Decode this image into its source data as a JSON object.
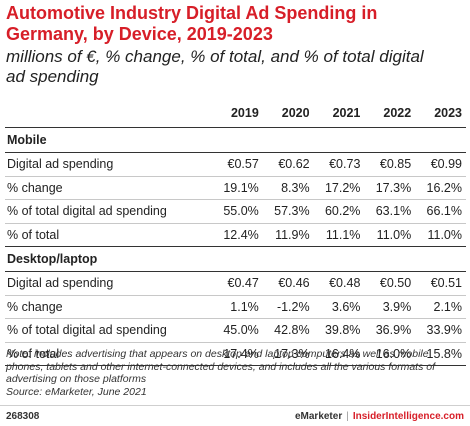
{
  "chart_data": {
    "type": "table",
    "title": "Automotive Industry Digital Ad Spending in Germany, by Device, 2019-2023",
    "subtitle": "millions of €, % change, % of total, and % of total digital ad spending",
    "columns": [
      "2019",
      "2020",
      "2021",
      "2022",
      "2023"
    ],
    "sections": [
      {
        "name": "Mobile",
        "rows": [
          {
            "label": "Digital ad spending",
            "values": [
              "€0.57",
              "€0.62",
              "€0.73",
              "€0.85",
              "€0.99"
            ]
          },
          {
            "label": "% change",
            "values": [
              "19.1%",
              "8.3%",
              "17.2%",
              "17.3%",
              "16.2%"
            ]
          },
          {
            "label": "% of total digital ad spending",
            "values": [
              "55.0%",
              "57.3%",
              "60.2%",
              "63.1%",
              "66.1%"
            ]
          },
          {
            "label": "% of total",
            "values": [
              "12.4%",
              "11.9%",
              "11.1%",
              "11.0%",
              "11.0%"
            ]
          }
        ]
      },
      {
        "name": "Desktop/laptop",
        "rows": [
          {
            "label": "Digital ad spending",
            "values": [
              "€0.47",
              "€0.46",
              "€0.48",
              "€0.50",
              "€0.51"
            ]
          },
          {
            "label": "% change",
            "values": [
              "1.1%",
              "-1.2%",
              "3.6%",
              "3.9%",
              "2.1%"
            ]
          },
          {
            "label": "% of total digital ad spending",
            "values": [
              "45.0%",
              "42.8%",
              "39.8%",
              "36.9%",
              "33.9%"
            ]
          },
          {
            "label": "% of total",
            "values": [
              "17.4%",
              "17.3%",
              "16.4%",
              "16.0%",
              "15.8%"
            ]
          }
        ]
      }
    ]
  },
  "note": "Note: includes advertising that appears on desktop and laptop computers as well as mobile phones, tablets and other internet-connected devices, and includes all the various formats of advertising on those platforms",
  "source": "Source: eMarketer, June 2021",
  "footer": {
    "chart_id": "268308",
    "brand": "eMarketer",
    "separator": "|",
    "site": "InsiderIntelligence.com"
  },
  "colors": {
    "title": "#d71e28",
    "text": "#222222",
    "rule_dark": "#333333",
    "rule_light": "#c8c8c8"
  }
}
